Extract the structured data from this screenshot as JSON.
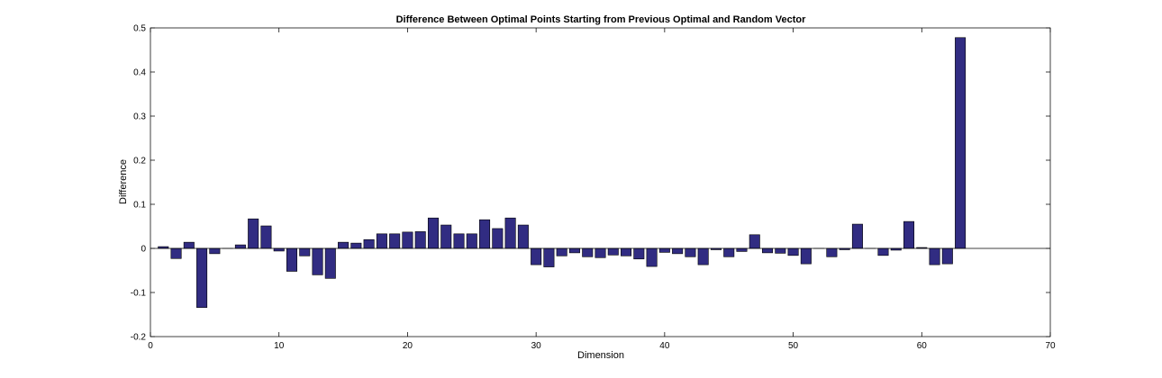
{
  "chart_data": {
    "type": "bar",
    "title": "Difference Between Optimal Points Starting from Previous Optimal and Random Vector",
    "xlabel": "Dimension",
    "ylabel": "Difference",
    "xlim": [
      0,
      70
    ],
    "ylim": [
      -0.2,
      0.5
    ],
    "xticks": [
      0,
      10,
      20,
      30,
      40,
      50,
      60,
      70
    ],
    "xtick_labels": [
      "0",
      "10",
      "20",
      "30",
      "40",
      "50",
      "60",
      "70"
    ],
    "yticks": [
      -0.2,
      -0.1,
      0,
      0.1,
      0.2,
      0.3,
      0.4,
      0.5
    ],
    "ytick_labels": [
      "-0.2",
      "-0.1",
      "0",
      "0.1",
      "0.2",
      "0.3",
      "0.4",
      "0.5"
    ],
    "grid": false,
    "bar_color": "#312c82",
    "edge_color": "#000000",
    "x": [
      1,
      2,
      3,
      4,
      5,
      6,
      7,
      8,
      9,
      10,
      11,
      12,
      13,
      14,
      15,
      16,
      17,
      18,
      19,
      20,
      21,
      22,
      23,
      24,
      25,
      26,
      27,
      28,
      29,
      30,
      31,
      32,
      33,
      34,
      35,
      36,
      37,
      38,
      39,
      40,
      41,
      42,
      43,
      44,
      45,
      46,
      47,
      48,
      49,
      50,
      51,
      52,
      53,
      54,
      55,
      56,
      57,
      58,
      59,
      60,
      61,
      62,
      63
    ],
    "values": [
      0.004,
      -0.023,
      0.014,
      -0.134,
      -0.012,
      0.0,
      0.008,
      0.067,
      0.051,
      -0.006,
      -0.052,
      -0.017,
      -0.06,
      -0.068,
      0.014,
      0.012,
      0.02,
      0.033,
      0.033,
      0.037,
      0.038,
      0.069,
      0.053,
      0.033,
      0.033,
      0.065,
      0.045,
      0.069,
      0.053,
      -0.037,
      -0.042,
      -0.017,
      -0.01,
      -0.019,
      -0.021,
      -0.015,
      -0.017,
      -0.024,
      -0.041,
      -0.009,
      -0.012,
      -0.019,
      -0.037,
      -0.003,
      -0.019,
      -0.007,
      0.031,
      -0.01,
      -0.011,
      -0.016,
      -0.035,
      0.0,
      -0.019,
      -0.003,
      0.055,
      0.0,
      -0.016,
      -0.004,
      0.061,
      0.002,
      -0.037,
      -0.035,
      0.478
    ]
  }
}
